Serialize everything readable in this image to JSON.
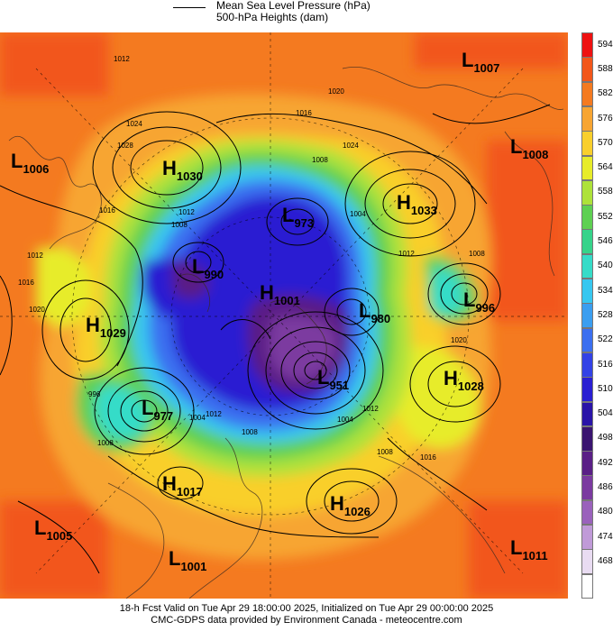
{
  "legend": {
    "line1": "Mean Sea Level Pressure (hPa)",
    "line2": "500-hPa Heights (dam)"
  },
  "footer": {
    "line1": "18-h Fcst Valid on Tue Apr 29 18:00:00 2025, Initialized on Tue Apr 29 00:00:00 2025",
    "line2": "CMC-GDPS data provided by Environment Canada - meteocentre.com"
  },
  "colorbar": [
    {
      "label": "594",
      "color": "#ee1111"
    },
    {
      "label": "588",
      "color": "#f2561a"
    },
    {
      "label": "582",
      "color": "#f47a20"
    },
    {
      "label": "576",
      "color": "#f7a532"
    },
    {
      "label": "570",
      "color": "#f9cf2c"
    },
    {
      "label": "564",
      "color": "#e7ec2a"
    },
    {
      "label": "558",
      "color": "#aee23a"
    },
    {
      "label": "552",
      "color": "#5ed052"
    },
    {
      "label": "546",
      "color": "#36d38a"
    },
    {
      "label": "540",
      "color": "#36dcc8"
    },
    {
      "label": "534",
      "color": "#37c7f0"
    },
    {
      "label": "528",
      "color": "#3b9ef0"
    },
    {
      "label": "522",
      "color": "#3b6ff0"
    },
    {
      "label": "516",
      "color": "#3342e6"
    },
    {
      "label": "510",
      "color": "#2a1fd2"
    },
    {
      "label": "504",
      "color": "#2a14a8"
    },
    {
      "label": "498",
      "color": "#3a1470"
    },
    {
      "label": "492",
      "color": "#5a1f86"
    },
    {
      "label": "486",
      "color": "#7b3aa0"
    },
    {
      "label": "480",
      "color": "#9a62bc"
    },
    {
      "label": "474",
      "color": "#c09ad8"
    },
    {
      "label": "468",
      "color": "#e9dcf2"
    },
    {
      "label": "",
      "color": "#ffffff"
    }
  ],
  "pressure_centers": [
    {
      "type": "L",
      "value": "1007"
    },
    {
      "type": "L",
      "value": "1006"
    },
    {
      "type": "H",
      "value": "1030"
    },
    {
      "type": "L",
      "value": "1008"
    },
    {
      "type": "H",
      "value": "1033"
    },
    {
      "type": "L",
      "value": "973"
    },
    {
      "type": "L",
      "value": "990"
    },
    {
      "type": "H",
      "value": "1001"
    },
    {
      "type": "L",
      "value": "980"
    },
    {
      "type": "L",
      "value": "996"
    },
    {
      "type": "H",
      "value": "1029"
    },
    {
      "type": "L",
      "value": "951"
    },
    {
      "type": "H",
      "value": "1028"
    },
    {
      "type": "L",
      "value": "977"
    },
    {
      "type": "H",
      "value": "1017"
    },
    {
      "type": "H",
      "value": "1026"
    },
    {
      "type": "L",
      "value": "1005"
    },
    {
      "type": "L",
      "value": "1001"
    },
    {
      "type": "L",
      "value": "1011"
    }
  ],
  "contour_labels": [
    "1012",
    "1024",
    "1028",
    "1016",
    "1020",
    "1016",
    "1024",
    "1008",
    "1004",
    "1012",
    "1008",
    "1012",
    "1016",
    "1020",
    "1012",
    "1008",
    "996",
    "1004",
    "1008",
    "1012",
    "1004",
    "1008",
    "1016",
    "1020",
    "1012",
    "1008"
  ]
}
